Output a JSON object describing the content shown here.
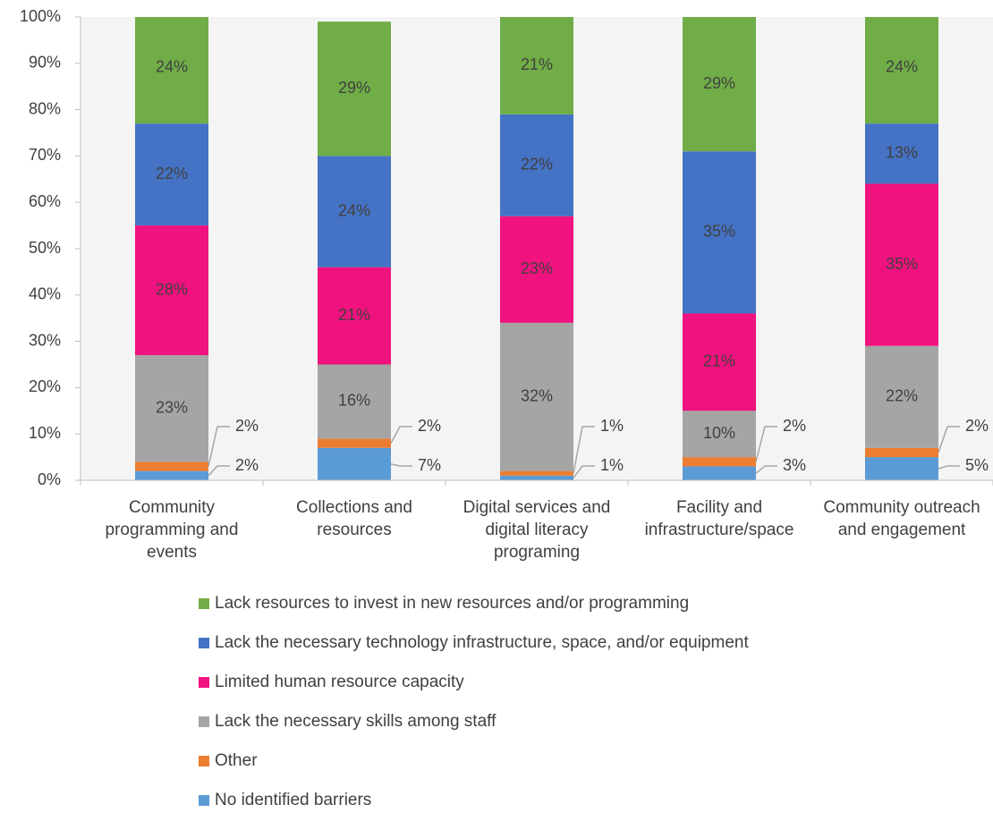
{
  "chart_data": {
    "type": "stacked-bar",
    "categories": [
      "Community programming and events",
      "Collections and resources",
      "Digital services and digital literacy programing",
      "Facility and infrastructure/space",
      "Community outreach and engagement"
    ],
    "series": [
      {
        "name": "No identified barriers",
        "color": "#5b9bd5",
        "values": [
          2,
          7,
          1,
          3,
          5
        ],
        "value_labels": [
          "2%",
          "7%",
          "1%",
          "3%",
          "5%"
        ]
      },
      {
        "name": "Other",
        "color": "#ed7d31",
        "values": [
          2,
          2,
          1,
          2,
          2
        ],
        "value_labels": [
          "2%",
          "2%",
          "1%",
          "2%",
          "2%"
        ]
      },
      {
        "name": "Lack the necessary skills among staff",
        "color": "#a5a5a5",
        "values": [
          23,
          16,
          32,
          10,
          22
        ],
        "value_labels": [
          "23%",
          "16%",
          "32%",
          "10%",
          "22%"
        ]
      },
      {
        "name": "Limited human resource capacity",
        "color": "#f0127e",
        "values": [
          28,
          21,
          23,
          21,
          35
        ],
        "value_labels": [
          "28%",
          "21%",
          "23%",
          "21%",
          "35%"
        ]
      },
      {
        "name": "Lack the necessary technology infrastructure, space, and/or equipment",
        "color": "#4472c4",
        "values": [
          22,
          24,
          22,
          35,
          13
        ],
        "value_labels": [
          "22%",
          "24%",
          "22%",
          "35%",
          "13%"
        ]
      },
      {
        "name": "Lack resources to invest in new resources and/or programming",
        "color": "#70ad47",
        "values": [
          24,
          29,
          21,
          29,
          24
        ],
        "value_labels": [
          "24%",
          "29%",
          "21%",
          "29%",
          "24%"
        ]
      }
    ],
    "ylim": [
      0,
      100
    ],
    "yticks": [
      {
        "value": 0,
        "label": "0%"
      },
      {
        "value": 10,
        "label": "10%"
      },
      {
        "value": 20,
        "label": "20%"
      },
      {
        "value": 30,
        "label": "30%"
      },
      {
        "value": 40,
        "label": "40%"
      },
      {
        "value": 50,
        "label": "50%"
      },
      {
        "value": 60,
        "label": "60%"
      },
      {
        "value": 70,
        "label": "70%"
      },
      {
        "value": 80,
        "label": "80%"
      },
      {
        "value": 90,
        "label": "90%"
      },
      {
        "value": 100,
        "label": "100%"
      }
    ],
    "grid": false
  }
}
